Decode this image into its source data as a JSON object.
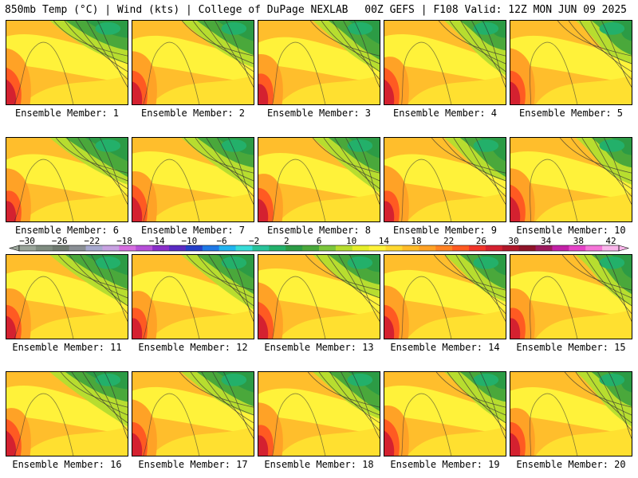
{
  "header": {
    "left": "850mb Temp (°C) | Wind (kts) | College of DuPage NEXLAB",
    "right": "00Z GEFS | F108 Valid: 12Z MON JUN 09 2025"
  },
  "colorbar": {
    "labels": [
      "-30",
      "-26",
      "-22",
      "-18",
      "-14",
      "-10",
      "-6",
      "-2",
      "2",
      "6",
      "10",
      "14",
      "18",
      "22",
      "26",
      "30",
      "34",
      "38",
      "42"
    ],
    "colors": [
      "#9aa59a",
      "#7f8c80",
      "#6f7a70",
      "#8a8f95",
      "#a7a9cf",
      "#c8a2e2",
      "#d66ee0",
      "#b64fd8",
      "#8a2fc9",
      "#5a2bc2",
      "#2540c8",
      "#1f78e6",
      "#21b4ef",
      "#38dcd8",
      "#29c39a",
      "#23b06a",
      "#2c9b45",
      "#4aa83b",
      "#7cc63c",
      "#b7dd2f",
      "#e6ee2a",
      "#fff23a",
      "#ffd830",
      "#ffbc2a",
      "#ffa226",
      "#ff8224",
      "#ff5a22",
      "#f0352a",
      "#d42130",
      "#b0182a",
      "#8e1429",
      "#9c1a5e",
      "#c221a6",
      "#e642c8",
      "#f575d8",
      "#f9b5ea"
    ]
  },
  "members": [
    {
      "label": "Ensemble Member: 1"
    },
    {
      "label": "Ensemble Member: 2"
    },
    {
      "label": "Ensemble Member: 3"
    },
    {
      "label": "Ensemble Member: 4"
    },
    {
      "label": "Ensemble Member: 5"
    },
    {
      "label": "Ensemble Member: 6"
    },
    {
      "label": "Ensemble Member: 7"
    },
    {
      "label": "Ensemble Member: 8"
    },
    {
      "label": "Ensemble Member: 9"
    },
    {
      "label": "Ensemble Member: 10"
    },
    {
      "label": "Ensemble Member: 11"
    },
    {
      "label": "Ensemble Member: 12"
    },
    {
      "label": "Ensemble Member: 13"
    },
    {
      "label": "Ensemble Member: 14"
    },
    {
      "label": "Ensemble Member: 15"
    },
    {
      "label": "Ensemble Member: 16"
    },
    {
      "label": "Ensemble Member: 17"
    },
    {
      "label": "Ensemble Member: 18"
    },
    {
      "label": "Ensemble Member: 19"
    },
    {
      "label": "Ensemble Member: 20"
    }
  ]
}
